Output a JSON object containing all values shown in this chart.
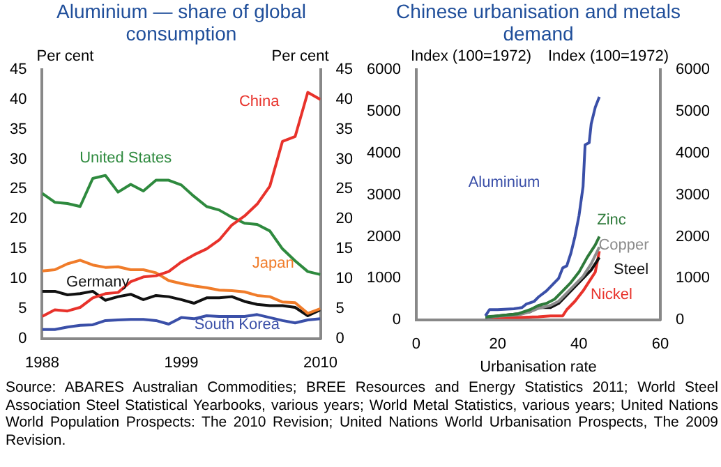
{
  "chart_data": [
    {
      "type": "line",
      "title": "Aluminium — share of global consumption",
      "ylabel": "Per cent",
      "y2label": "Per cent",
      "x": [
        1988,
        1989,
        1990,
        1991,
        1992,
        1993,
        1994,
        1995,
        1996,
        1997,
        1998,
        1999,
        2000,
        2001,
        2002,
        2003,
        2004,
        2005,
        2006,
        2007,
        2008,
        2009,
        2010
      ],
      "xlim": [
        1988,
        2010
      ],
      "xticks": [
        1988,
        1999,
        2010
      ],
      "ylim": [
        0,
        45
      ],
      "yticks": [
        0,
        5,
        10,
        15,
        20,
        25,
        30,
        35,
        40,
        45
      ],
      "y2lim": [
        0,
        45
      ],
      "y2ticks": [
        0,
        5,
        10,
        15,
        20,
        25,
        30,
        35,
        40,
        45
      ],
      "grid": false,
      "legend": false,
      "marker": "none",
      "line_style": "solid",
      "series": [
        {
          "name": "China",
          "color": "#e8322b",
          "values": [
            3.7,
            4.8,
            4.6,
            5.2,
            6.8,
            7.5,
            7.7,
            9.5,
            10.3,
            10.5,
            11.2,
            12.8,
            14,
            15,
            16.5,
            19,
            20.5,
            22.5,
            25.5,
            33,
            33.8,
            41.2,
            40
          ]
        },
        {
          "name": "United States",
          "color": "#2e8a3e",
          "values": [
            24.3,
            22.8,
            22.6,
            22.1,
            26.8,
            27.3,
            24.5,
            25.8,
            24.7,
            26.5,
            26.5,
            25.7,
            23.8,
            22.1,
            21.5,
            20.3,
            19.3,
            19.1,
            18,
            15,
            13,
            11.2,
            10.7
          ]
        },
        {
          "name": "Japan",
          "color": "#f07c2a",
          "values": [
            11.3,
            11.5,
            12.5,
            13.1,
            12.3,
            11.9,
            12,
            11.5,
            11.5,
            11,
            9.7,
            9.2,
            8.8,
            8.5,
            8.1,
            8,
            7.8,
            7.2,
            7,
            6.1,
            6,
            4.2,
            5
          ]
        },
        {
          "name": "Germany",
          "color": "#111111",
          "values": [
            7.9,
            7.9,
            7.3,
            7.5,
            7.9,
            6.4,
            7,
            7.4,
            6.5,
            7.2,
            7,
            6.5,
            5.9,
            6.8,
            6.8,
            7,
            6.2,
            5.7,
            5.5,
            5.5,
            5.2,
            3.8,
            4.8
          ]
        },
        {
          "name": "South Korea",
          "color": "#3a4fa8",
          "values": [
            1.5,
            1.5,
            1.9,
            2.2,
            2.3,
            3,
            3.1,
            3.2,
            3.2,
            3,
            2.4,
            3.5,
            3.3,
            3.8,
            3.7,
            3.7,
            3.7,
            4,
            3.5,
            3,
            2.6,
            3.1,
            3.3
          ]
        }
      ],
      "annotations": [
        "Source: ABARES Australian Commodities; BREE Resources and Energy Statistics 2011; World Steel Association Steel Statistical Yearbooks, various years; World Metal Statistics, various years; United Nations World Population Prospects: The 2010 Revision; United Nations World Urbanisation Prospects, The 2009 Revision."
      ]
    },
    {
      "type": "line",
      "title": "Chinese urbanisation and metals demand",
      "xlabel": "Urbanisation rate",
      "ylabel": "Index (100=1972)",
      "y2label": "Index (100=1972)",
      "xlim": [
        0,
        60
      ],
      "xticks": [
        0,
        20,
        40,
        60
      ],
      "ylim": [
        0,
        6000
      ],
      "yticks": [
        0,
        1000,
        2000,
        3000,
        4000,
        5000,
        6000
      ],
      "y2lim": [
        0,
        6000
      ],
      "y2ticks": [
        0,
        1000,
        2000,
        3000,
        4000,
        5000,
        6000
      ],
      "grid": false,
      "legend": false,
      "marker": "none",
      "line_style": "solid",
      "series": [
        {
          "name": "Aluminium",
          "color": "#3a4fa8",
          "x": [
            17,
            18,
            20,
            24,
            26,
            27,
            29,
            30,
            32,
            33,
            35,
            36,
            37,
            38,
            39,
            40,
            41,
            41.5,
            42.5,
            43,
            44,
            45
          ],
          "values": [
            100,
            250,
            250,
            270,
            300,
            380,
            450,
            550,
            700,
            800,
            1000,
            1250,
            1300,
            1600,
            2000,
            2500,
            3200,
            4200,
            4250,
            4700,
            5100,
            5350
          ]
        },
        {
          "name": "Zinc",
          "color": "#2e7a3a",
          "x": [
            17,
            20,
            25,
            28,
            30,
            32,
            34,
            36,
            38,
            40,
            42,
            44,
            45
          ],
          "values": [
            80,
            100,
            150,
            250,
            350,
            400,
            500,
            700,
            900,
            1150,
            1500,
            1800,
            2000
          ]
        },
        {
          "name": "Copper",
          "color": "#8c8c8c",
          "x": [
            17,
            20,
            25,
            28,
            30,
            33,
            35,
            37,
            39,
            41,
            43,
            45
          ],
          "values": [
            70,
            90,
            120,
            200,
            280,
            350,
            450,
            650,
            850,
            1050,
            1350,
            1750
          ]
        },
        {
          "name": "Steel",
          "color": "#111111",
          "x": [
            17,
            20,
            25,
            28,
            30,
            33,
            35,
            37,
            39,
            41,
            43,
            45
          ],
          "values": [
            60,
            100,
            150,
            200,
            300,
            300,
            400,
            600,
            800,
            1000,
            1200,
            1500
          ]
        },
        {
          "name": "Nickel",
          "color": "#e8322b",
          "x": [
            17,
            20,
            25,
            30,
            33,
            36,
            37,
            39,
            41,
            43,
            44,
            45
          ],
          "values": [
            80,
            60,
            60,
            80,
            100,
            100,
            250,
            450,
            700,
            1000,
            1150,
            1650
          ]
        }
      ]
    }
  ]
}
